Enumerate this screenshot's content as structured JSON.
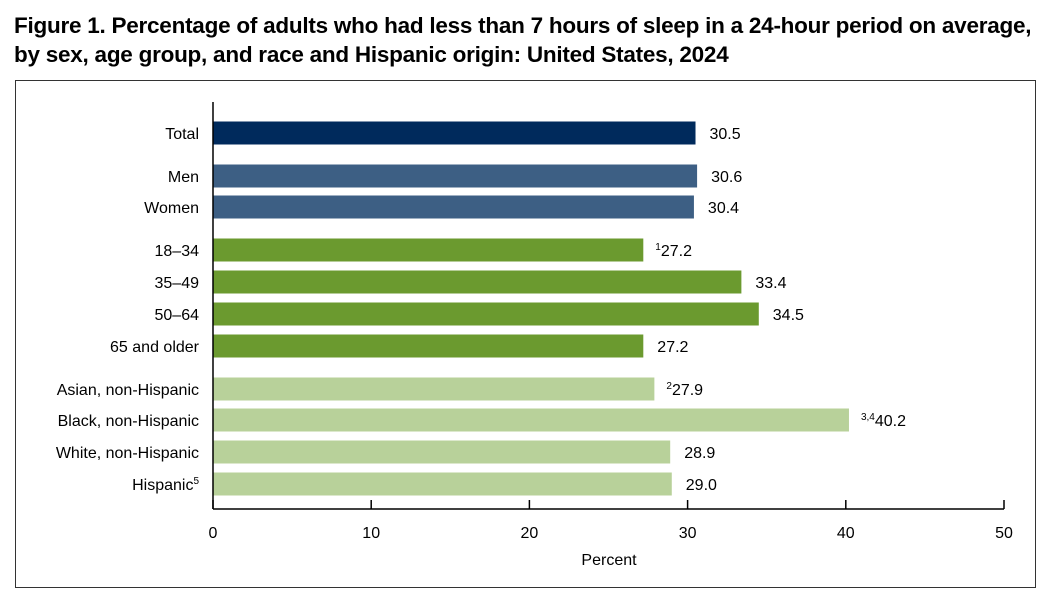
{
  "title": "Figure 1. Percentage of adults who had less than 7 hours of sleep in a 24-hour period on average, by sex, age group, and race and Hispanic origin: United States, 2024",
  "chart_data": {
    "type": "bar",
    "orientation": "horizontal",
    "title": "Figure 1. Percentage of adults who had less than 7 hours of sleep in a 24-hour period on average, by sex, age group, and race and Hispanic origin: United States, 2024",
    "xlabel": "Percent",
    "ylabel": "",
    "xlim": [
      0,
      50
    ],
    "x_ticks": [
      "0",
      "10",
      "20",
      "30",
      "40",
      "50"
    ],
    "grid": false,
    "legend": "none",
    "colors": {
      "total": "#002a5c",
      "sex": "#3d5f84",
      "age": "#6b9a2f",
      "race": "#b8d19a"
    },
    "categories": [
      {
        "label": "Total",
        "sup": "",
        "value": 30.5,
        "value_label": "30.5",
        "value_sup": "",
        "group": "total"
      },
      {
        "label": "Men",
        "sup": "",
        "value": 30.6,
        "value_label": "30.6",
        "value_sup": "",
        "group": "sex"
      },
      {
        "label": "Women",
        "sup": "",
        "value": 30.4,
        "value_label": "30.4",
        "value_sup": "",
        "group": "sex"
      },
      {
        "label": "18–34",
        "sup": "",
        "value": 27.2,
        "value_label": "27.2",
        "value_sup": "1",
        "group": "age"
      },
      {
        "label": "35–49",
        "sup": "",
        "value": 33.4,
        "value_label": "33.4",
        "value_sup": "",
        "group": "age"
      },
      {
        "label": "50–64",
        "sup": "",
        "value": 34.5,
        "value_label": "34.5",
        "value_sup": "",
        "group": "age"
      },
      {
        "label": "65 and older",
        "sup": "",
        "value": 27.2,
        "value_label": "27.2",
        "value_sup": "",
        "group": "age"
      },
      {
        "label": "Asian, non-Hispanic",
        "sup": "",
        "value": 27.9,
        "value_label": "27.9",
        "value_sup": "2",
        "group": "race"
      },
      {
        "label": "Black, non-Hispanic",
        "sup": "",
        "value": 40.2,
        "value_label": "40.2",
        "value_sup": "3,4",
        "group": "race"
      },
      {
        "label": "White, non-Hispanic",
        "sup": "",
        "value": 28.9,
        "value_label": "28.9",
        "value_sup": "",
        "group": "race"
      },
      {
        "label": "Hispanic",
        "sup": "5",
        "value": 29.0,
        "value_label": "29.0",
        "value_sup": "",
        "group": "race"
      }
    ]
  }
}
